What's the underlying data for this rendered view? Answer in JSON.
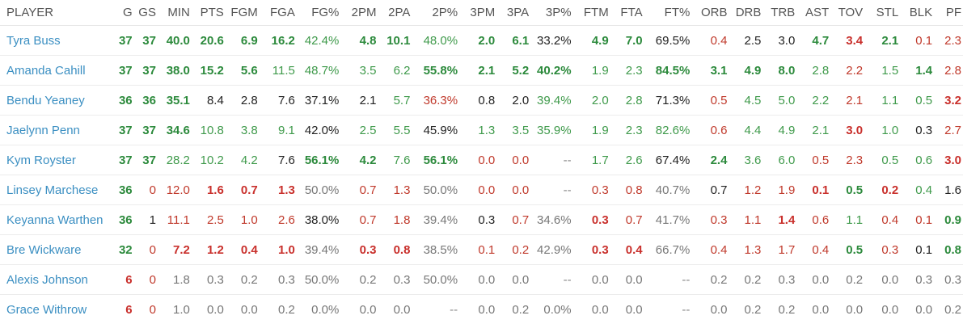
{
  "columns": [
    "PLAYER",
    "G",
    "GS",
    "MIN",
    "PTS",
    "FGM",
    "FGA",
    "FG%",
    "2PM",
    "2PA",
    "2P%",
    "3PM",
    "3PA",
    "3P%",
    "FTM",
    "FTA",
    "FT%",
    "ORB",
    "DRB",
    "TRB",
    "AST",
    "TOV",
    "STL",
    "BLK",
    "PF"
  ],
  "colors": {
    "link": "#3b8fc2",
    "high": "#2c8a3c",
    "low": "#c9302c",
    "neutral": "#777777",
    "default": "#222222"
  },
  "rows": [
    {
      "player": "Tyra Buss",
      "cells": [
        [
          "37",
          "hi"
        ],
        [
          "37",
          "hi"
        ],
        [
          "40.0",
          "hi"
        ],
        [
          "20.6",
          "hi"
        ],
        [
          "6.9",
          "hi"
        ],
        [
          "16.2",
          "hi"
        ],
        [
          "42.4%",
          "mhi"
        ],
        [
          "4.8",
          "hi"
        ],
        [
          "10.1",
          "hi"
        ],
        [
          "48.0%",
          "mhi"
        ],
        [
          "2.0",
          "hi"
        ],
        [
          "6.1",
          "hi"
        ],
        [
          "33.2%",
          "blk"
        ],
        [
          "4.9",
          "hi"
        ],
        [
          "7.0",
          "hi"
        ],
        [
          "69.5%",
          "blk"
        ],
        [
          "0.4",
          "mlo"
        ],
        [
          "2.5",
          "blk"
        ],
        [
          "3.0",
          "blk"
        ],
        [
          "4.7",
          "hi"
        ],
        [
          "3.4",
          "lo"
        ],
        [
          "2.1",
          "hi"
        ],
        [
          "0.1",
          "mlo"
        ],
        [
          "2.3",
          "mlo"
        ]
      ]
    },
    {
      "player": "Amanda Cahill",
      "cells": [
        [
          "37",
          "hi"
        ],
        [
          "37",
          "hi"
        ],
        [
          "38.0",
          "hi"
        ],
        [
          "15.2",
          "hi"
        ],
        [
          "5.6",
          "hi"
        ],
        [
          "11.5",
          "mhi"
        ],
        [
          "48.7%",
          "mhi"
        ],
        [
          "3.5",
          "mhi"
        ],
        [
          "6.2",
          "mhi"
        ],
        [
          "55.8%",
          "hi"
        ],
        [
          "2.1",
          "hi"
        ],
        [
          "5.2",
          "hi"
        ],
        [
          "40.2%",
          "hi"
        ],
        [
          "1.9",
          "mhi"
        ],
        [
          "2.3",
          "mhi"
        ],
        [
          "84.5%",
          "hi"
        ],
        [
          "3.1",
          "hi"
        ],
        [
          "4.9",
          "hi"
        ],
        [
          "8.0",
          "hi"
        ],
        [
          "2.8",
          "mhi"
        ],
        [
          "2.2",
          "mlo"
        ],
        [
          "1.5",
          "mhi"
        ],
        [
          "1.4",
          "hi"
        ],
        [
          "2.8",
          "mlo"
        ]
      ]
    },
    {
      "player": "Bendu Yeaney",
      "cells": [
        [
          "36",
          "hi"
        ],
        [
          "36",
          "hi"
        ],
        [
          "35.1",
          "hi"
        ],
        [
          "8.4",
          "blk"
        ],
        [
          "2.8",
          "blk"
        ],
        [
          "7.6",
          "blk"
        ],
        [
          "37.1%",
          "blk"
        ],
        [
          "2.1",
          "blk"
        ],
        [
          "5.7",
          "mhi"
        ],
        [
          "36.3%",
          "mlo"
        ],
        [
          "0.8",
          "blk"
        ],
        [
          "2.0",
          "blk"
        ],
        [
          "39.4%",
          "mhi"
        ],
        [
          "2.0",
          "mhi"
        ],
        [
          "2.8",
          "mhi"
        ],
        [
          "71.3%",
          "blk"
        ],
        [
          "0.5",
          "mlo"
        ],
        [
          "4.5",
          "mhi"
        ],
        [
          "5.0",
          "mhi"
        ],
        [
          "2.2",
          "mhi"
        ],
        [
          "2.1",
          "mlo"
        ],
        [
          "1.1",
          "mhi"
        ],
        [
          "0.5",
          "mhi"
        ],
        [
          "3.2",
          "lo"
        ]
      ]
    },
    {
      "player": "Jaelynn Penn",
      "cells": [
        [
          "37",
          "hi"
        ],
        [
          "37",
          "hi"
        ],
        [
          "34.6",
          "hi"
        ],
        [
          "10.8",
          "mhi"
        ],
        [
          "3.8",
          "mhi"
        ],
        [
          "9.1",
          "mhi"
        ],
        [
          "42.0%",
          "blk"
        ],
        [
          "2.5",
          "mhi"
        ],
        [
          "5.5",
          "mhi"
        ],
        [
          "45.9%",
          "blk"
        ],
        [
          "1.3",
          "mhi"
        ],
        [
          "3.5",
          "mhi"
        ],
        [
          "35.9%",
          "mhi"
        ],
        [
          "1.9",
          "mhi"
        ],
        [
          "2.3",
          "mhi"
        ],
        [
          "82.6%",
          "mhi"
        ],
        [
          "0.6",
          "mlo"
        ],
        [
          "4.4",
          "mhi"
        ],
        [
          "4.9",
          "mhi"
        ],
        [
          "2.1",
          "mhi"
        ],
        [
          "3.0",
          "lo"
        ],
        [
          "1.0",
          "mhi"
        ],
        [
          "0.3",
          "blk"
        ],
        [
          "2.7",
          "mlo"
        ]
      ]
    },
    {
      "player": "Kym Royster",
      "cells": [
        [
          "37",
          "hi"
        ],
        [
          "37",
          "hi"
        ],
        [
          "28.2",
          "mhi"
        ],
        [
          "10.2",
          "mhi"
        ],
        [
          "4.2",
          "mhi"
        ],
        [
          "7.6",
          "blk"
        ],
        [
          "56.1%",
          "hi"
        ],
        [
          "4.2",
          "hi"
        ],
        [
          "7.6",
          "mhi"
        ],
        [
          "56.1%",
          "hi"
        ],
        [
          "0.0",
          "mlo"
        ],
        [
          "0.0",
          "mlo"
        ],
        [
          "--",
          "na"
        ],
        [
          "1.7",
          "mhi"
        ],
        [
          "2.6",
          "mhi"
        ],
        [
          "67.4%",
          "blk"
        ],
        [
          "2.4",
          "hi"
        ],
        [
          "3.6",
          "mhi"
        ],
        [
          "6.0",
          "mhi"
        ],
        [
          "0.5",
          "mlo"
        ],
        [
          "2.3",
          "mlo"
        ],
        [
          "0.5",
          "mhi"
        ],
        [
          "0.6",
          "mhi"
        ],
        [
          "3.0",
          "lo"
        ]
      ]
    },
    {
      "player": "Linsey Marchese",
      "cells": [
        [
          "36",
          "hi"
        ],
        [
          "0",
          "mlo"
        ],
        [
          "12.0",
          "mlo"
        ],
        [
          "1.6",
          "lo"
        ],
        [
          "0.7",
          "lo"
        ],
        [
          "1.3",
          "lo"
        ],
        [
          "50.0%",
          "mid"
        ],
        [
          "0.7",
          "mlo"
        ],
        [
          "1.3",
          "mlo"
        ],
        [
          "50.0%",
          "mid"
        ],
        [
          "0.0",
          "mlo"
        ],
        [
          "0.0",
          "mlo"
        ],
        [
          "--",
          "na"
        ],
        [
          "0.3",
          "mlo"
        ],
        [
          "0.8",
          "mlo"
        ],
        [
          "40.7%",
          "mid"
        ],
        [
          "0.7",
          "blk"
        ],
        [
          "1.2",
          "mlo"
        ],
        [
          "1.9",
          "mlo"
        ],
        [
          "0.1",
          "lo"
        ],
        [
          "0.5",
          "hi"
        ],
        [
          "0.2",
          "lo"
        ],
        [
          "0.4",
          "mhi"
        ],
        [
          "1.6",
          "blk"
        ]
      ]
    },
    {
      "player": "Keyanna Warthen",
      "cells": [
        [
          "36",
          "hi"
        ],
        [
          "1",
          "blk"
        ],
        [
          "11.1",
          "mlo"
        ],
        [
          "2.5",
          "mlo"
        ],
        [
          "1.0",
          "mlo"
        ],
        [
          "2.6",
          "mlo"
        ],
        [
          "38.0%",
          "blk"
        ],
        [
          "0.7",
          "mlo"
        ],
        [
          "1.8",
          "mlo"
        ],
        [
          "39.4%",
          "mid"
        ],
        [
          "0.3",
          "blk"
        ],
        [
          "0.7",
          "mlo"
        ],
        [
          "34.6%",
          "mid"
        ],
        [
          "0.3",
          "lo"
        ],
        [
          "0.7",
          "mlo"
        ],
        [
          "41.7%",
          "mid"
        ],
        [
          "0.3",
          "mlo"
        ],
        [
          "1.1",
          "mlo"
        ],
        [
          "1.4",
          "lo"
        ],
        [
          "0.6",
          "mlo"
        ],
        [
          "1.1",
          "mhi"
        ],
        [
          "0.4",
          "mlo"
        ],
        [
          "0.1",
          "mlo"
        ],
        [
          "0.9",
          "hi"
        ]
      ]
    },
    {
      "player": "Bre Wickware",
      "cells": [
        [
          "32",
          "hi"
        ],
        [
          "0",
          "mlo"
        ],
        [
          "7.2",
          "lo"
        ],
        [
          "1.2",
          "lo"
        ],
        [
          "0.4",
          "lo"
        ],
        [
          "1.0",
          "lo"
        ],
        [
          "39.4%",
          "mid"
        ],
        [
          "0.3",
          "lo"
        ],
        [
          "0.8",
          "lo"
        ],
        [
          "38.5%",
          "mid"
        ],
        [
          "0.1",
          "mlo"
        ],
        [
          "0.2",
          "mlo"
        ],
        [
          "42.9%",
          "mid"
        ],
        [
          "0.3",
          "lo"
        ],
        [
          "0.4",
          "lo"
        ],
        [
          "66.7%",
          "mid"
        ],
        [
          "0.4",
          "mlo"
        ],
        [
          "1.3",
          "mlo"
        ],
        [
          "1.7",
          "mlo"
        ],
        [
          "0.4",
          "mlo"
        ],
        [
          "0.5",
          "hi"
        ],
        [
          "0.3",
          "mlo"
        ],
        [
          "0.1",
          "blk"
        ],
        [
          "0.8",
          "hi"
        ]
      ]
    },
    {
      "player": "Alexis Johnson",
      "cells": [
        [
          "6",
          "lo"
        ],
        [
          "0",
          "mlo"
        ],
        [
          "1.8",
          "mid"
        ],
        [
          "0.3",
          "mid"
        ],
        [
          "0.2",
          "mid"
        ],
        [
          "0.3",
          "mid"
        ],
        [
          "50.0%",
          "mid"
        ],
        [
          "0.2",
          "mid"
        ],
        [
          "0.3",
          "mid"
        ],
        [
          "50.0%",
          "mid"
        ],
        [
          "0.0",
          "mid"
        ],
        [
          "0.0",
          "mid"
        ],
        [
          "--",
          "na"
        ],
        [
          "0.0",
          "mid"
        ],
        [
          "0.0",
          "mid"
        ],
        [
          "--",
          "na"
        ],
        [
          "0.2",
          "mid"
        ],
        [
          "0.2",
          "mid"
        ],
        [
          "0.3",
          "mid"
        ],
        [
          "0.0",
          "mid"
        ],
        [
          "0.2",
          "mid"
        ],
        [
          "0.0",
          "mid"
        ],
        [
          "0.3",
          "mid"
        ],
        [
          "0.3",
          "mid"
        ]
      ]
    },
    {
      "player": "Grace Withrow",
      "cells": [
        [
          "6",
          "lo"
        ],
        [
          "0",
          "mlo"
        ],
        [
          "1.0",
          "mid"
        ],
        [
          "0.0",
          "mid"
        ],
        [
          "0.0",
          "mid"
        ],
        [
          "0.2",
          "mid"
        ],
        [
          "0.0%",
          "mid"
        ],
        [
          "0.0",
          "mid"
        ],
        [
          "0.0",
          "mid"
        ],
        [
          "--",
          "na"
        ],
        [
          "0.0",
          "mid"
        ],
        [
          "0.2",
          "mid"
        ],
        [
          "0.0%",
          "mid"
        ],
        [
          "0.0",
          "mid"
        ],
        [
          "0.0",
          "mid"
        ],
        [
          "--",
          "na"
        ],
        [
          "0.0",
          "mid"
        ],
        [
          "0.2",
          "mid"
        ],
        [
          "0.2",
          "mid"
        ],
        [
          "0.0",
          "mid"
        ],
        [
          "0.0",
          "mid"
        ],
        [
          "0.0",
          "mid"
        ],
        [
          "0.0",
          "mid"
        ],
        [
          "0.2",
          "mid"
        ]
      ]
    }
  ]
}
